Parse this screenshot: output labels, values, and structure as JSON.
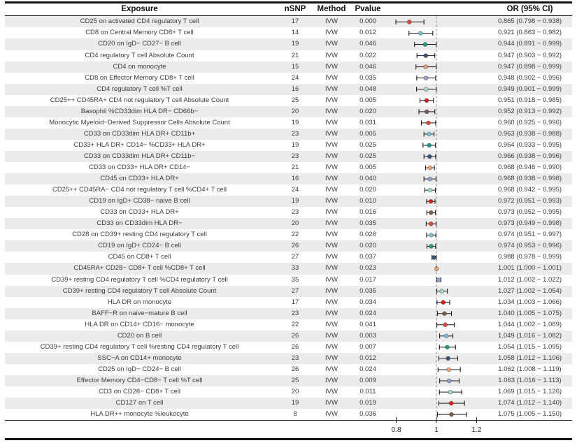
{
  "figure": {
    "columns": {
      "exposure": "Exposure",
      "nsnp": "nSNP",
      "method": "Method",
      "pvalue": "Pvalue",
      "or_ci": "OR (95% CI)"
    },
    "colors": {
      "row_stripe": "#ebebeb",
      "text": "#3c3c3c",
      "header_text": "#111111",
      "rule": "#111111",
      "ref_line": "#8a8a8a",
      "whisker": "#1a1a1a"
    }
  },
  "chart_data": {
    "type": "scatter",
    "subtype": "forest-plot",
    "title": "",
    "xlabel": "",
    "ylabel": "",
    "x_axis": {
      "ticks": [
        0.8,
        1,
        1.2
      ],
      "tick_labels": [
        "0.8",
        "1",
        "1.2"
      ],
      "ref_line": 1,
      "xlim": [
        0.75,
        1.25
      ]
    },
    "grid": false,
    "legend": null,
    "marker_palette": [
      "#dd4b3b",
      "#7ec5d8",
      "#279c88",
      "#3c5578",
      "#f0a273",
      "#93a6c9",
      "#a9dbc9",
      "#e01f1f",
      "#7d6052"
    ],
    "rows": [
      {
        "exposure": "CD25 on activated CD4 regulatory T cell",
        "nsnp": "17",
        "method": "IVW",
        "pvalue": "0.000",
        "or": 0.865,
        "ci_low": 0.798,
        "ci_high": 0.938,
        "or_ci_text": "0.865 (0.798 − 0.938)"
      },
      {
        "exposure": "CD8 on Central Memory CD8+ T cell",
        "nsnp": "14",
        "method": "IVW",
        "pvalue": "0.012",
        "or": 0.921,
        "ci_low": 0.863,
        "ci_high": 0.982,
        "or_ci_text": "0.921 (0.863 − 0.982)"
      },
      {
        "exposure": "CD20 on IgD− CD27− B cell",
        "nsnp": "19",
        "method": "IVW",
        "pvalue": "0.046",
        "or": 0.944,
        "ci_low": 0.891,
        "ci_high": 0.999,
        "or_ci_text": "0.944 (0.891 − 0.999)"
      },
      {
        "exposure": "CD4 regulatory T cell Absolute Count",
        "nsnp": "21",
        "method": "IVW",
        "pvalue": "0.022",
        "or": 0.947,
        "ci_low": 0.903,
        "ci_high": 0.992,
        "or_ci_text": "0.947 (0.903 − 0.992)"
      },
      {
        "exposure": "CD4 on monocyte",
        "nsnp": "15",
        "method": "IVW",
        "pvalue": "0.046",
        "or": 0.947,
        "ci_low": 0.898,
        "ci_high": 0.999,
        "or_ci_text": "0.947 (0.898 − 0.999)"
      },
      {
        "exposure": "CD8 on Effector Memory CD8+ T cell",
        "nsnp": "24",
        "method": "IVW",
        "pvalue": "0.035",
        "or": 0.948,
        "ci_low": 0.902,
        "ci_high": 0.996,
        "or_ci_text": "0.948 (0.902 − 0.996)"
      },
      {
        "exposure": "CD4 regulatory T cell %T cell",
        "nsnp": "16",
        "method": "IVW",
        "pvalue": "0.048",
        "or": 0.949,
        "ci_low": 0.901,
        "ci_high": 0.999,
        "or_ci_text": "0.949 (0.901 − 0.999)"
      },
      {
        "exposure": "CD25++ CD45RA+ CD4 not regulatory T cell Absolute Count",
        "nsnp": "25",
        "method": "IVW",
        "pvalue": "0.005",
        "or": 0.951,
        "ci_low": 0.918,
        "ci_high": 0.985,
        "or_ci_text": "0.951 (0.918 − 0.985)"
      },
      {
        "exposure": "Basophil %CD33dim HLA DR− CD66b−",
        "nsnp": "20",
        "method": "IVW",
        "pvalue": "0.020",
        "or": 0.952,
        "ci_low": 0.913,
        "ci_high": 0.992,
        "or_ci_text": "0.952 (0.913 − 0.992)"
      },
      {
        "exposure": "Monocytic Myeloid−Derived Suppressor Cells Absolute Count",
        "nsnp": "19",
        "method": "IVW",
        "pvalue": "0.031",
        "or": 0.96,
        "ci_low": 0.925,
        "ci_high": 0.996,
        "or_ci_text": "0.960 (0.925 − 0.996)"
      },
      {
        "exposure": "CD33 on CD33dim HLA DR+ CD11b+",
        "nsnp": "23",
        "method": "IVW",
        "pvalue": "0.005",
        "or": 0.963,
        "ci_low": 0.938,
        "ci_high": 0.988,
        "or_ci_text": "0.963 (0.938 − 0.988)"
      },
      {
        "exposure": "CD33+ HLA DR+ CD14− %CD33+ HLA DR+",
        "nsnp": "19",
        "method": "IVW",
        "pvalue": "0.025",
        "or": 0.964,
        "ci_low": 0.933,
        "ci_high": 0.995,
        "or_ci_text": "0.964 (0.933 − 0.995)"
      },
      {
        "exposure": "CD33 on CD33dim HLA DR+ CD11b−",
        "nsnp": "23",
        "method": "IVW",
        "pvalue": "0.025",
        "or": 0.966,
        "ci_low": 0.938,
        "ci_high": 0.996,
        "or_ci_text": "0.966 (0.938 − 0.996)"
      },
      {
        "exposure": "CD33 on CD33+ HLA DR+ CD14−",
        "nsnp": "21",
        "method": "IVW",
        "pvalue": "0.005",
        "or": 0.968,
        "ci_low": 0.946,
        "ci_high": 0.99,
        "or_ci_text": "0.968 (0.946 − 0.990)"
      },
      {
        "exposure": "CD45 on CD33+ HLA DR+",
        "nsnp": "16",
        "method": "IVW",
        "pvalue": "0.040",
        "or": 0.968,
        "ci_low": 0.938,
        "ci_high": 0.998,
        "or_ci_text": "0.968 (0.938 − 0.998)"
      },
      {
        "exposure": "CD25++ CD45RA− CD4 not regulatory T cell %CD4+ T cell",
        "nsnp": "24",
        "method": "IVW",
        "pvalue": "0.020",
        "or": 0.968,
        "ci_low": 0.942,
        "ci_high": 0.995,
        "or_ci_text": "0.968 (0.942 − 0.995)"
      },
      {
        "exposure": "CD19 on IgD+ CD38− naive B cell",
        "nsnp": "19",
        "method": "IVW",
        "pvalue": "0.010",
        "or": 0.972,
        "ci_low": 0.951,
        "ci_high": 0.993,
        "or_ci_text": "0.972 (0.951 − 0.993)"
      },
      {
        "exposure": "CD33 on CD33+ HLA DR+",
        "nsnp": "23",
        "method": "IVW",
        "pvalue": "0.016",
        "or": 0.973,
        "ci_low": 0.952,
        "ci_high": 0.995,
        "or_ci_text": "0.973 (0.952 − 0.995)"
      },
      {
        "exposure": "CD33 on CD33dim HLA DR−",
        "nsnp": "20",
        "method": "IVW",
        "pvalue": "0.035",
        "or": 0.973,
        "ci_low": 0.949,
        "ci_high": 0.998,
        "or_ci_text": "0.973 (0.949 − 0.998)"
      },
      {
        "exposure": "CD28 on CD39+ resting CD4 regulatory T cell",
        "nsnp": "22",
        "method": "IVW",
        "pvalue": "0.026",
        "or": 0.974,
        "ci_low": 0.951,
        "ci_high": 0.997,
        "or_ci_text": "0.974 (0.951 − 0.997)"
      },
      {
        "exposure": "CD19 on IgD+ CD24− B cell",
        "nsnp": "26",
        "method": "IVW",
        "pvalue": "0.020",
        "or": 0.974,
        "ci_low": 0.953,
        "ci_high": 0.996,
        "or_ci_text": "0.974 (0.953 − 0.996)"
      },
      {
        "exposure": "CD45 on CD8+ T cell",
        "nsnp": "27",
        "method": "IVW",
        "pvalue": "0.037",
        "or": 0.988,
        "ci_low": 0.978,
        "ci_high": 0.999,
        "or_ci_text": "0.988 (0.978 − 0.999)"
      },
      {
        "exposure": "CD45RA+ CD28− CD8+ T cell %CD8+ T cell",
        "nsnp": "33",
        "method": "IVW",
        "pvalue": "0.023",
        "or": 1.001,
        "ci_low": 1.0,
        "ci_high": 1.001,
        "or_ci_text": "1.001 (1.000 − 1.001)"
      },
      {
        "exposure": "CD39+ resting CD4 regulatory T cell %CD4 regulatory T cell",
        "nsnp": "35",
        "method": "IVW",
        "pvalue": "0.017",
        "or": 1.012,
        "ci_low": 1.002,
        "ci_high": 1.022,
        "or_ci_text": "1.012 (1.002 − 1.022)"
      },
      {
        "exposure": "CD39+ resting CD4 regulatory T cell Absolute Count",
        "nsnp": "27",
        "method": "IVW",
        "pvalue": "0.035",
        "or": 1.027,
        "ci_low": 1.002,
        "ci_high": 1.054,
        "or_ci_text": "1.027 (1.002 − 1.054)"
      },
      {
        "exposure": "HLA DR on monocyte",
        "nsnp": "17",
        "method": "IVW",
        "pvalue": "0.034",
        "or": 1.034,
        "ci_low": 1.003,
        "ci_high": 1.066,
        "or_ci_text": "1.034 (1.003 − 1.066)"
      },
      {
        "exposure": "BAFF−R on naive−mature B cell",
        "nsnp": "23",
        "method": "IVW",
        "pvalue": "0.024",
        "or": 1.04,
        "ci_low": 1.005,
        "ci_high": 1.075,
        "or_ci_text": "1.040 (1.005 − 1.075)"
      },
      {
        "exposure": "HLA DR on CD14+ CD16− monocyte",
        "nsnp": "22",
        "method": "IVW",
        "pvalue": "0.041",
        "or": 1.044,
        "ci_low": 1.002,
        "ci_high": 1.089,
        "or_ci_text": "1.044 (1.002 − 1.089)"
      },
      {
        "exposure": "CD20 on B cell",
        "nsnp": "26",
        "method": "IVW",
        "pvalue": "0.003",
        "or": 1.049,
        "ci_low": 1.016,
        "ci_high": 1.082,
        "or_ci_text": "1.049 (1.016 − 1.082)"
      },
      {
        "exposure": "CD39+ resting CD4 regulatory T cell %resting CD4 regulatory T cell",
        "nsnp": "26",
        "method": "IVW",
        "pvalue": "0.007",
        "or": 1.054,
        "ci_low": 1.015,
        "ci_high": 1.095,
        "or_ci_text": "1.054 (1.015 − 1.095)"
      },
      {
        "exposure": "SSC−A on CD14+ monocyte",
        "nsnp": "23",
        "method": "IVW",
        "pvalue": "0.012",
        "or": 1.058,
        "ci_low": 1.012,
        "ci_high": 1.106,
        "or_ci_text": "1.058 (1.012 − 1.106)"
      },
      {
        "exposure": "CD25 on IgD− CD24− B cell",
        "nsnp": "26",
        "method": "IVW",
        "pvalue": "0.024",
        "or": 1.062,
        "ci_low": 1.008,
        "ci_high": 1.119,
        "or_ci_text": "1.062 (1.008 − 1.119)"
      },
      {
        "exposure": "Effector Memory CD4−CD8− T cell %T cell",
        "nsnp": "25",
        "method": "IVW",
        "pvalue": "0.009",
        "or": 1.063,
        "ci_low": 1.016,
        "ci_high": 1.113,
        "or_ci_text": "1.063 (1.016 − 1.113)"
      },
      {
        "exposure": "CD3 on CD28− CD8+ T cell",
        "nsnp": "20",
        "method": "IVW",
        "pvalue": "0.011",
        "or": 1.069,
        "ci_low": 1.015,
        "ci_high": 1.126,
        "or_ci_text": "1.069 (1.015 − 1.126)"
      },
      {
        "exposure": "CD127 on T cell",
        "nsnp": "19",
        "method": "IVW",
        "pvalue": "0.019",
        "or": 1.074,
        "ci_low": 1.012,
        "ci_high": 1.14,
        "or_ci_text": "1.074 (1.012 − 1.140)"
      },
      {
        "exposure": "HLA DR++ monocyte %leukocyte",
        "nsnp": "8",
        "method": "IVW",
        "pvalue": "0.036",
        "or": 1.075,
        "ci_low": 1.005,
        "ci_high": 1.15,
        "or_ci_text": "1.075 (1.005 − 1.150)"
      }
    ]
  }
}
